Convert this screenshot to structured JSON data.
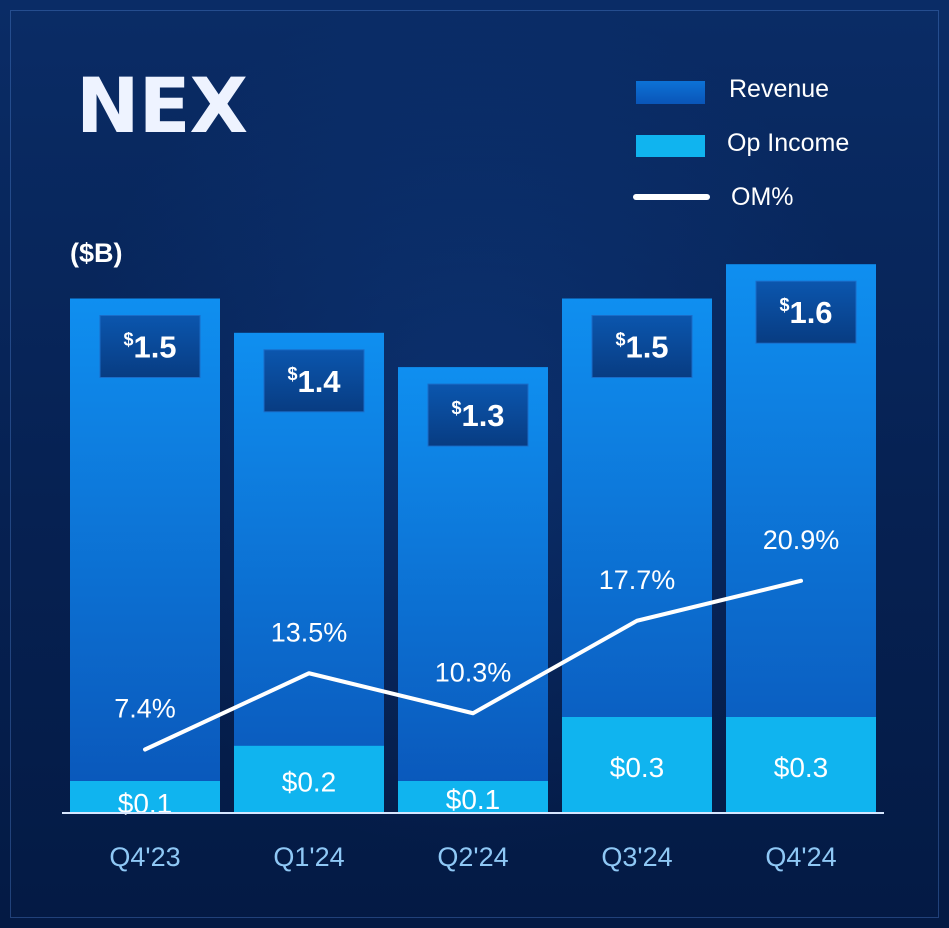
{
  "colors": {
    "revenue_bar_top": "#0f8ff0",
    "revenue_bar_bottom": "#0a55b8",
    "op_income_bar": "#10b4ef",
    "label_box": "#0a4a9c",
    "line": "#ffffff",
    "text": "#ffffff",
    "tick_text": "#8fc8f5"
  },
  "chart_data": {
    "type": "bar",
    "title": "NEX",
    "unit_label": "($B)",
    "categories": [
      "Q4'23",
      "Q1'24",
      "Q2'24",
      "Q3'24",
      "Q4'24"
    ],
    "series": [
      {
        "name": "Revenue",
        "kind": "bar",
        "values": [
          1.5,
          1.4,
          1.3,
          1.5,
          1.6
        ],
        "labels": [
          "1.5",
          "1.4",
          "1.3",
          "1.5",
          "1.6"
        ],
        "currency_symbol": "$"
      },
      {
        "name": "Op Income",
        "kind": "bar",
        "values": [
          0.1,
          0.2,
          0.1,
          0.3,
          0.3
        ],
        "labels": [
          "$0.1",
          "$0.2",
          "$0.1",
          "$0.3",
          "$0.3"
        ]
      },
      {
        "name": "OM%",
        "kind": "line",
        "values": [
          7.4,
          13.5,
          10.3,
          17.7,
          20.9
        ],
        "labels": [
          "7.4%",
          "13.5%",
          "10.3%",
          "17.7%",
          "20.9%"
        ]
      }
    ],
    "legend_position": "top-right",
    "grid": false
  }
}
